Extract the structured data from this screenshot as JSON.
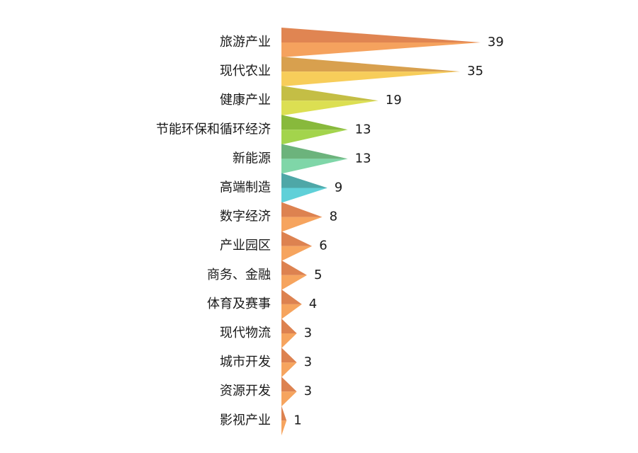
{
  "chart_data": {
    "type": "bar",
    "orientation": "horizontal",
    "mark_shape": "triangle",
    "categories": [
      "旅游产业",
      "现代农业",
      "健康产业",
      "节能环保和循环经济",
      "新能源",
      "高端制造",
      "数字经济",
      "产业园区",
      "商务、金融",
      "体育及赛事",
      "现代物流",
      "城市开发",
      "资源开发",
      "影视产业"
    ],
    "values": [
      39,
      35,
      19,
      13,
      13,
      9,
      8,
      6,
      5,
      4,
      3,
      3,
      3,
      1
    ],
    "colors": [
      {
        "top": "#e08552",
        "bottom": "#f5a25e"
      },
      {
        "top": "#d8a04e",
        "bottom": "#f7cd5a"
      },
      {
        "top": "#c4be45",
        "bottom": "#dcdf52"
      },
      {
        "top": "#88b93c",
        "bottom": "#a3d44c"
      },
      {
        "top": "#6cb37c",
        "bottom": "#7fd6a8"
      },
      {
        "top": "#4ea7a7",
        "bottom": "#5fd0d8"
      },
      {
        "top": "#dd8250",
        "bottom": "#f6a45e"
      },
      {
        "top": "#dd8250",
        "bottom": "#f6a45e"
      },
      {
        "top": "#dd8250",
        "bottom": "#f6a45e"
      },
      {
        "top": "#dd8250",
        "bottom": "#f6a45e"
      },
      {
        "top": "#dd8250",
        "bottom": "#f6a45e"
      },
      {
        "top": "#dd8250",
        "bottom": "#f6a45e"
      },
      {
        "top": "#dd8250",
        "bottom": "#f6a45e"
      },
      {
        "top": "#dd8250",
        "bottom": "#f6a45e"
      }
    ],
    "xlim": [
      0,
      39
    ],
    "grid": false,
    "legend": false,
    "title": "",
    "xlabel": "",
    "ylabel": ""
  }
}
